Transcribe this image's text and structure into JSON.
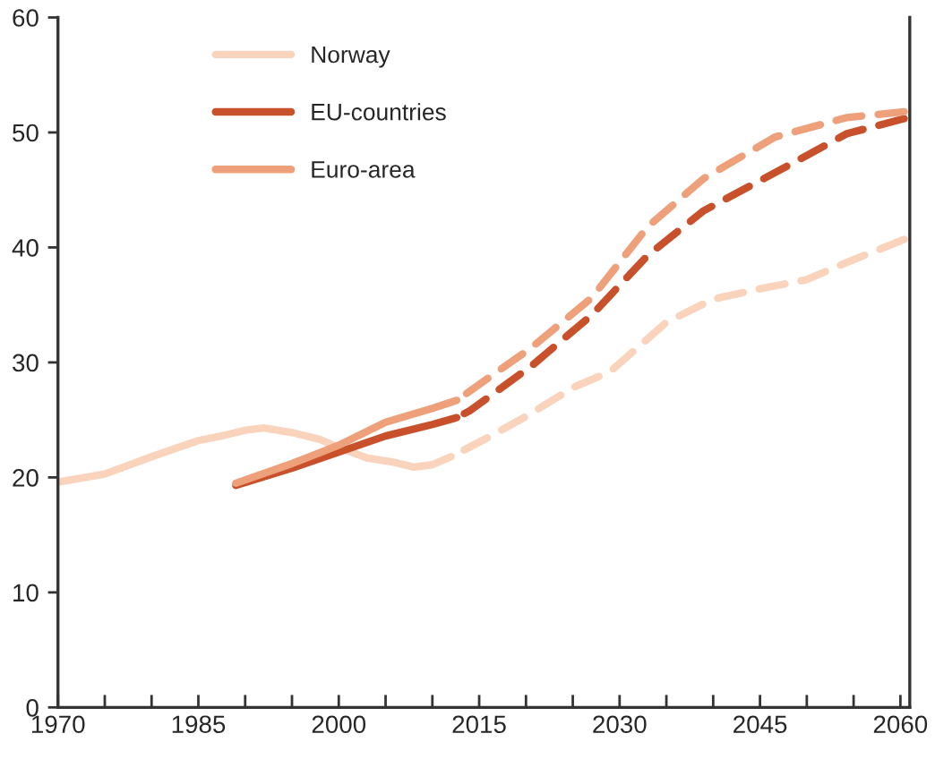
{
  "chart_data": {
    "type": "line",
    "xlim": [
      1970,
      2061
    ],
    "ylim": [
      0,
      60
    ],
    "xticks": [
      1970,
      {
        "value": 1975,
        "label": null
      },
      {
        "value": 1980,
        "label": null
      },
      1985,
      {
        "value": 1990,
        "label": null
      },
      {
        "value": 1995,
        "label": null
      },
      2000,
      {
        "value": 2005,
        "label": null
      },
      {
        "value": 2010,
        "label": null
      },
      2015,
      {
        "value": 2020,
        "label": null
      },
      {
        "value": 2025,
        "label": null
      },
      2030,
      {
        "value": 2035,
        "label": null
      },
      {
        "value": 2040,
        "label": null
      },
      2045,
      {
        "value": 2050,
        "label": null
      },
      {
        "value": 2055,
        "label": null
      },
      2060
    ],
    "yticks": [
      0,
      10,
      20,
      30,
      40,
      50,
      60
    ],
    "grid": false,
    "legend": "top left",
    "marker": "none",
    "series": [
      {
        "name": "Norway",
        "color": "#f9d3bb",
        "line_style": "solid",
        "x": [
          1970,
          1975,
          1980,
          1985,
          1988,
          1990,
          1992,
          1995,
          1998,
          2000,
          2003,
          2006,
          2008,
          2010,
          2012
        ],
        "values": [
          19.6,
          20.3,
          21.8,
          23.2,
          23.7,
          24.1,
          24.3,
          23.9,
          23.3,
          22.6,
          21.7,
          21.3,
          20.9,
          21.1,
          21.8
        ]
      },
      {
        "name": "EU-countries",
        "color": "#c8502a",
        "line_style": "solid",
        "x": [
          1989,
          1995,
          2000,
          2005,
          2010,
          2012.6
        ],
        "values": [
          19.3,
          20.8,
          22.2,
          23.6,
          24.6,
          25.2
        ]
      },
      {
        "name": "Euro-area",
        "color": "#eda07a",
        "line_style": "solid",
        "x": [
          1989,
          1995,
          2000,
          2005,
          2010,
          2012.6
        ],
        "values": [
          19.5,
          21.2,
          22.8,
          24.8,
          26.0,
          26.7
        ]
      },
      {
        "color": "#f9d3bb",
        "line_style": "dashed",
        "x": [
          2012,
          2016,
          2020,
          2025,
          2029,
          2035,
          2040,
          2045,
          2050,
          2054,
          2060.4
        ],
        "values": [
          21.8,
          23.5,
          25.3,
          27.8,
          29.2,
          33.5,
          35.5,
          36.4,
          37.2,
          38.6,
          40.7
        ]
      },
      {
        "color": "#c8502a",
        "line_style": "dashed",
        "x": [
          2012.6,
          2014,
          2020.6,
          2027,
          2033,
          2039,
          2046.6,
          2054.3,
          2060.4
        ],
        "values": [
          25.2,
          25.8,
          29.7,
          34.1,
          39.3,
          43.2,
          46.5,
          49.9,
          51.2
        ]
      },
      {
        "color": "#eda07a",
        "line_style": "dashed",
        "x": [
          2012.6,
          2020.6,
          2027,
          2033,
          2039,
          2046.6,
          2054.3,
          2060.4
        ],
        "values": [
          26.7,
          31.3,
          35.6,
          41.8,
          46.0,
          49.6,
          51.3,
          51.8
        ]
      }
    ]
  }
}
